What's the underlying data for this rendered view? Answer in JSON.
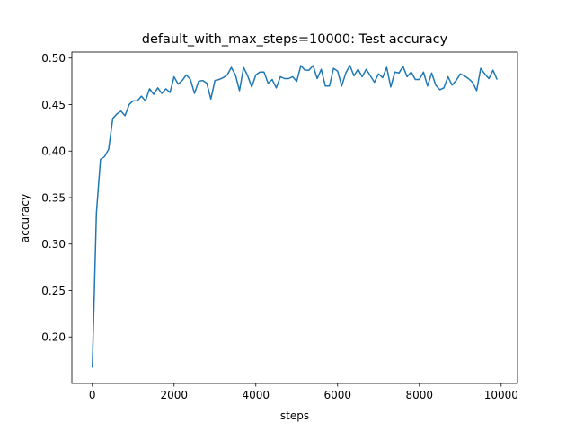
{
  "chart_data": {
    "type": "line",
    "title": "default_with_max_steps=10000: Test accuracy",
    "xlabel": "steps",
    "ylabel": "accuracy",
    "xlim": [
      -500,
      10400
    ],
    "ylim": [
      0.15,
      0.5065
    ],
    "xticks": [
      0,
      2000,
      4000,
      6000,
      8000,
      10000
    ],
    "xtick_labels": [
      "0",
      "2000",
      "4000",
      "6000",
      "8000",
      "10000"
    ],
    "yticks": [
      0.2,
      0.25,
      0.3,
      0.35,
      0.4,
      0.45,
      0.5
    ],
    "ytick_labels": [
      "0.20",
      "0.25",
      "0.30",
      "0.35",
      "0.40",
      "0.45",
      "0.50"
    ],
    "grid": false,
    "legend": "none",
    "line_color": "#1f77b4",
    "series": [
      {
        "x": [
          0,
          100,
          200,
          300,
          400,
          500,
          600,
          700,
          800,
          900,
          1000,
          1100,
          1200,
          1300,
          1400,
          1500,
          1600,
          1700,
          1800,
          1900,
          2000,
          2100,
          2200,
          2300,
          2400,
          2500,
          2600,
          2700,
          2800,
          2900,
          3000,
          3100,
          3200,
          3300,
          3400,
          3500,
          3600,
          3700,
          3800,
          3900,
          4000,
          4100,
          4200,
          4300,
          4400,
          4500,
          4600,
          4700,
          4800,
          4900,
          5000,
          5100,
          5200,
          5300,
          5400,
          5500,
          5600,
          5700,
          5800,
          5900,
          6000,
          6100,
          6200,
          6300,
          6400,
          6500,
          6600,
          6700,
          6800,
          6900,
          7000,
          7100,
          7200,
          7300,
          7400,
          7500,
          7600,
          7700,
          7800,
          7900,
          8000,
          8100,
          8200,
          8300,
          8400,
          8500,
          8600,
          8700,
          8800,
          8900,
          9000,
          9100,
          9200,
          9300,
          9400,
          9500,
          9600,
          9700,
          9800,
          9900
        ],
        "values": [
          0.167,
          0.333,
          0.391,
          0.394,
          0.402,
          0.435,
          0.44,
          0.443,
          0.438,
          0.45,
          0.454,
          0.454,
          0.459,
          0.454,
          0.467,
          0.461,
          0.468,
          0.462,
          0.467,
          0.463,
          0.48,
          0.472,
          0.476,
          0.482,
          0.477,
          0.462,
          0.475,
          0.476,
          0.473,
          0.456,
          0.476,
          0.477,
          0.479,
          0.482,
          0.49,
          0.482,
          0.465,
          0.49,
          0.481,
          0.469,
          0.482,
          0.485,
          0.485,
          0.473,
          0.477,
          0.468,
          0.48,
          0.478,
          0.478,
          0.48,
          0.475,
          0.492,
          0.487,
          0.487,
          0.492,
          0.478,
          0.488,
          0.47,
          0.47,
          0.489,
          0.486,
          0.47,
          0.484,
          0.492,
          0.481,
          0.488,
          0.48,
          0.488,
          0.481,
          0.474,
          0.483,
          0.479,
          0.49,
          0.469,
          0.485,
          0.484,
          0.491,
          0.48,
          0.485,
          0.477,
          0.477,
          0.485,
          0.47,
          0.484,
          0.471,
          0.466,
          0.468,
          0.48,
          0.471,
          0.476,
          0.483,
          0.481,
          0.478,
          0.474,
          0.465,
          0.489,
          0.483,
          0.478,
          0.487,
          0.477
        ]
      }
    ]
  }
}
